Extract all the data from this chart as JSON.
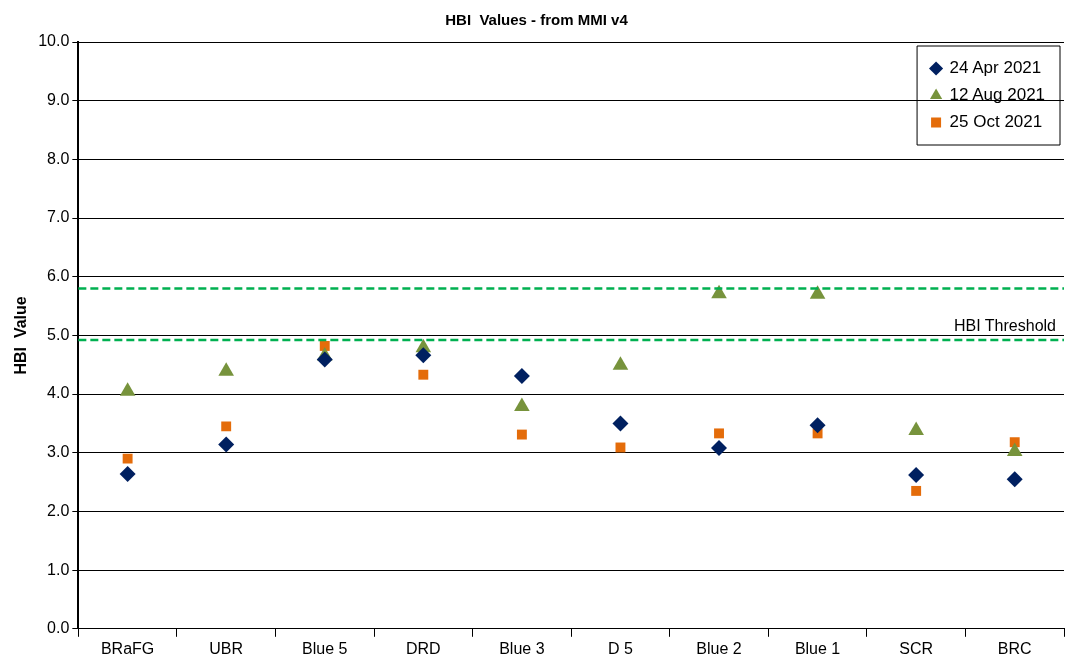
{
  "chart_data": {
    "type": "scatter",
    "title": "HBI  Values - from MMI v4",
    "ylabel": "HBI  Value",
    "categories": [
      "BRaFG",
      "UBR",
      "Blue 5",
      "DRD",
      "Blue 3",
      "D 5",
      "Blue 2",
      "Blue 1",
      "SCR",
      "BRC"
    ],
    "series": [
      {
        "name": "24 Apr 2021",
        "color": "#002060",
        "marker": "diamond",
        "values": [
          2.64,
          3.14,
          4.59,
          4.66,
          4.31,
          3.5,
          3.08,
          3.47,
          2.62,
          2.55
        ]
      },
      {
        "name": "12 Aug 2021",
        "color": "#77933c",
        "marker": "triangle",
        "values": [
          4.05,
          4.39,
          4.65,
          4.79,
          3.79,
          4.49,
          5.71,
          5.7,
          3.38,
          3.02
        ]
      },
      {
        "name": "25 Oct 2021",
        "color": "#e46c0a",
        "marker": "square",
        "values": [
          2.9,
          3.45,
          4.82,
          4.33,
          3.31,
          3.09,
          3.33,
          3.33,
          2.35,
          3.18
        ]
      }
    ],
    "ylim": [
      0,
      10
    ],
    "yticks": [
      {
        "value": 0,
        "label": "0.0"
      },
      {
        "value": 1,
        "label": "1.0"
      },
      {
        "value": 2,
        "label": "2.0"
      },
      {
        "value": 3,
        "label": "3.0"
      },
      {
        "value": 4,
        "label": "4.0"
      },
      {
        "value": 5,
        "label": "5.0"
      },
      {
        "value": 6,
        "label": "6.0"
      },
      {
        "value": 7,
        "label": "7.0"
      },
      {
        "value": 8,
        "label": "8.0"
      },
      {
        "value": 9,
        "label": "9.0"
      },
      {
        "value": 10,
        "label": "10.0"
      }
    ],
    "grid": "y",
    "legend": "top right",
    "ref_lines": [
      {
        "axis": "y",
        "value": 4.92,
        "label": "HBI Threshold",
        "color": "#00b050",
        "line_style": "dashed"
      },
      {
        "axis": "y",
        "value": 5.8,
        "label": null,
        "color": "#00b050",
        "line_style": "dashed"
      }
    ]
  }
}
